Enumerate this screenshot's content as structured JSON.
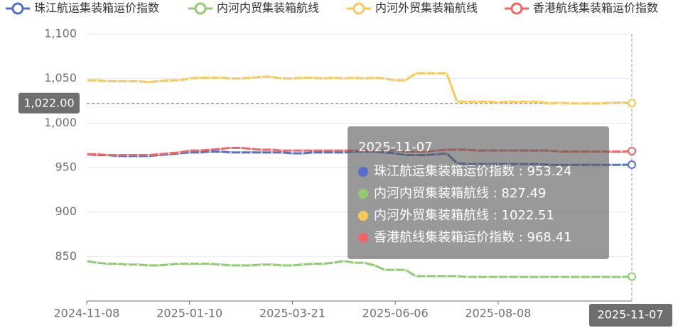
{
  "chart_data": {
    "type": "line",
    "categories": [
      "2024-11-08",
      null,
      null,
      null,
      null,
      null,
      null,
      null,
      null,
      null,
      "2025-01-10",
      null,
      null,
      null,
      null,
      null,
      null,
      null,
      null,
      null,
      "2025-03-21",
      null,
      null,
      null,
      null,
      null,
      null,
      null,
      null,
      null,
      "2025-06-06",
      null,
      null,
      null,
      null,
      null,
      null,
      null,
      null,
      null,
      "2025-08-08",
      null,
      null,
      null,
      null,
      null,
      null,
      null,
      null,
      null,
      null,
      null,
      null,
      "2025-11-07"
    ],
    "series": [
      {
        "name": "珠江航运集装箱运价指数",
        "color": "#5470c6",
        "values": [
          965,
          964,
          964,
          963,
          963,
          963,
          963,
          964,
          965,
          966,
          967,
          967,
          968,
          968,
          967,
          967,
          967,
          967,
          967,
          967,
          966,
          966,
          967,
          967,
          967,
          967,
          968,
          968,
          968,
          967,
          966,
          964,
          964,
          964,
          965,
          966,
          955,
          954,
          954,
          954,
          954,
          954,
          954,
          954,
          954,
          953,
          953,
          953,
          953,
          953,
          953,
          953,
          953,
          953.24
        ]
      },
      {
        "name": "内河内贸集装箱航线",
        "color": "#91cc75",
        "values": [
          845,
          843,
          842,
          842,
          841,
          841,
          840,
          840,
          841,
          842,
          842,
          842,
          842,
          841,
          840,
          840,
          840,
          841,
          841,
          840,
          840,
          841,
          842,
          842,
          843,
          845,
          843,
          843,
          840,
          835,
          835,
          835,
          828,
          828,
          828,
          828,
          828,
          827,
          827,
          827,
          827,
          827,
          827,
          827,
          827,
          827,
          827,
          827,
          827,
          827,
          827,
          827,
          827,
          827.49
        ]
      },
      {
        "name": "内河外贸集装箱航线",
        "color": "#fac858",
        "values": [
          1048,
          1048,
          1047,
          1047,
          1047,
          1047,
          1046,
          1047,
          1048,
          1048,
          1050,
          1051,
          1051,
          1051,
          1050,
          1050,
          1051,
          1052,
          1052,
          1050,
          1050,
          1051,
          1051,
          1050,
          1051,
          1050,
          1051,
          1050,
          1051,
          1050,
          1048,
          1048,
          1056,
          1056,
          1056,
          1056,
          1024,
          1024,
          1024,
          1024,
          1023,
          1024,
          1024,
          1024,
          1024,
          1022,
          1023,
          1022,
          1022,
          1022,
          1022,
          1023,
          1023,
          1022.51
        ]
      },
      {
        "name": "香港航线集装箱运价指数",
        "color": "#ee6666",
        "values": [
          965,
          965,
          964,
          964,
          964,
          964,
          964,
          965,
          966,
          967,
          969,
          969,
          970,
          971,
          972,
          972,
          971,
          970,
          970,
          969,
          969,
          969,
          969,
          969,
          969,
          969,
          969,
          969,
          969,
          969,
          969,
          968,
          968,
          968,
          969,
          970,
          970,
          970,
          969,
          969,
          969,
          969,
          969,
          969,
          969,
          969,
          968,
          968,
          968,
          968,
          968,
          968,
          968,
          968.41
        ]
      }
    ],
    "ylim": [
      800,
      1100
    ],
    "yticks": [
      850,
      900,
      950,
      {
        "value": 1000,
        "label": "1,000"
      },
      {
        "value": 1050,
        "label": "1,050"
      },
      {
        "value": 1100,
        "label": "1,100"
      }
    ],
    "grid": true,
    "legend": "top",
    "axis_pointer": {
      "y": {
        "value": 1022,
        "label": "1,022.00"
      }
    },
    "tooltip": {
      "separator": " : "
    }
  }
}
